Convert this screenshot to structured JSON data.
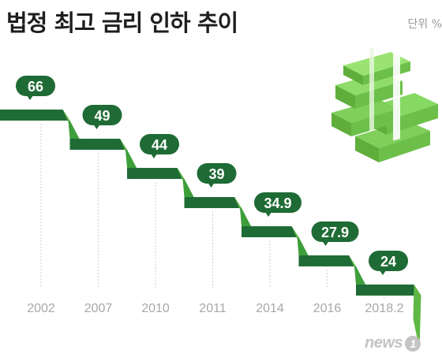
{
  "title": "법정 최고 금리 인하 추이",
  "unit": "단위 %",
  "credit": {
    "text": "news",
    "badge": "1"
  },
  "colors": {
    "dark_green": "#1f6b35",
    "mid_green": "#3d9e3a",
    "light_green": "#5fb845",
    "grid": "#cfcfcf",
    "year_text": "#a8a8a8"
  },
  "chart_data": {
    "type": "line",
    "style": "descending staircase with value labels",
    "categories": [
      "2002",
      "2007",
      "2010",
      "2011",
      "2014",
      "2016",
      "2018.2"
    ],
    "values": [
      66,
      49,
      44,
      39,
      34.9,
      27.9,
      24
    ],
    "value_labels": [
      "66",
      "49",
      "44",
      "39",
      "34.9",
      "27.9",
      "24"
    ],
    "title": "법정 최고 금리 인하 추이",
    "unit": "%",
    "grid": "vertical dashed lines at each year"
  },
  "decoration": {
    "icon": "money-stack-icon"
  }
}
